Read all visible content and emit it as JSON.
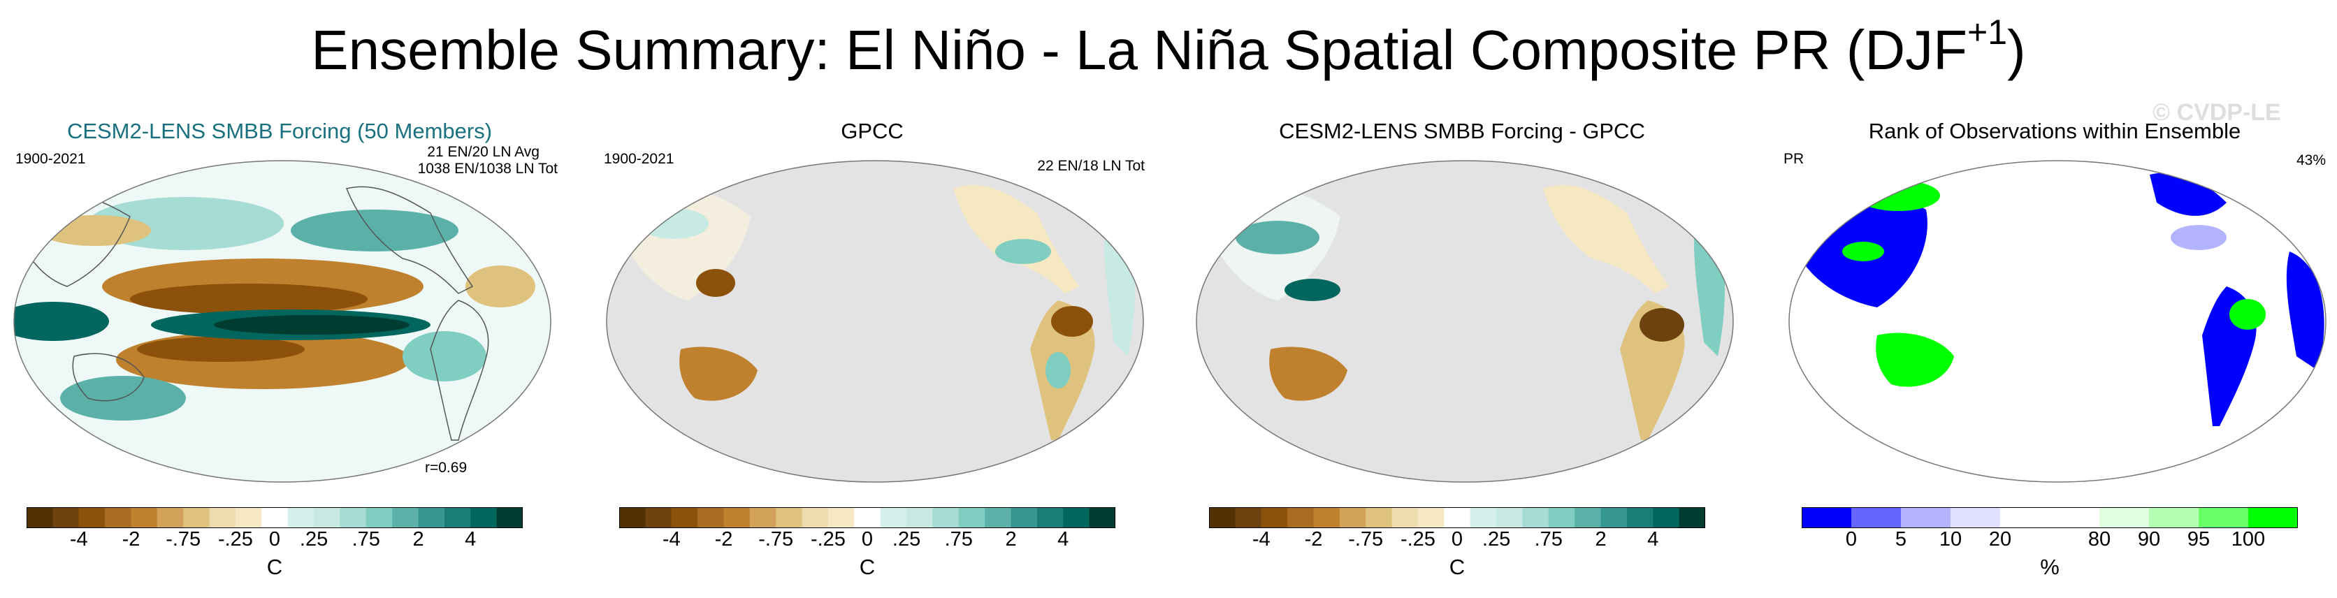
{
  "figure": {
    "title": "Ensemble Summary: El Niño - La Niña Spatial Composite PR (DJF",
    "title_sup": "+1",
    "title_close": ")",
    "watermark": "© CVDP-LE"
  },
  "colors": {
    "ocean_gray": "#e3e3e3",
    "title_teal": "#19707f",
    "diverging": [
      "#543005",
      "#6e420e",
      "#8c510a",
      "#a86c22",
      "#bf812d",
      "#d3a25a",
      "#dfc27d",
      "#ecdcb0",
      "#f6e8c3",
      "#ffffff",
      "#d5efed",
      "#c7eae5",
      "#a5dcd4",
      "#80cdc1",
      "#5bb1a8",
      "#35978f",
      "#1b7e76",
      "#01665e",
      "#003c30"
    ],
    "rank": [
      "#0000ff",
      "#6666ff",
      "#b3b3ff",
      "#e0e0ff",
      "#ffffff",
      "#ffffff",
      "#e0ffe0",
      "#b3ffb3",
      "#66ff66",
      "#00ff00"
    ]
  },
  "panels": [
    {
      "title": "CESM2-LENS SMBB Forcing (50 Members)",
      "left_label": "1900-2021",
      "right_label_1": "21 EN/20 LN Avg",
      "right_label_2": "1038 EN/1038 LN Tot",
      "bottom_label": "r=0.69",
      "colorbar": {
        "ticks": [
          "-4",
          "-2",
          "-.75",
          "-.25",
          "0",
          ".25",
          ".75",
          "2",
          "4"
        ],
        "unit": "C"
      }
    },
    {
      "title": "GPCC",
      "left_label": "1900-2021",
      "right_label_1": "22 EN/18 LN Tot",
      "colorbar": {
        "ticks": [
          "-4",
          "-2",
          "-.75",
          "-.25",
          "0",
          ".25",
          ".75",
          "2",
          "4"
        ],
        "unit": "C"
      }
    },
    {
      "title": "CESM2-LENS SMBB Forcing - GPCC",
      "colorbar": {
        "ticks": [
          "-4",
          "-2",
          "-.75",
          "-.25",
          "0",
          ".25",
          ".75",
          "2",
          "4"
        ],
        "unit": "C"
      }
    },
    {
      "title": "Rank of Observations within Ensemble",
      "left_label": "PR",
      "right_label_1": "43%",
      "colorbar": {
        "ticks": [
          "0",
          "5",
          "10",
          "20",
          "80",
          "90",
          "95",
          "100"
        ],
        "unit": "%"
      }
    }
  ]
}
